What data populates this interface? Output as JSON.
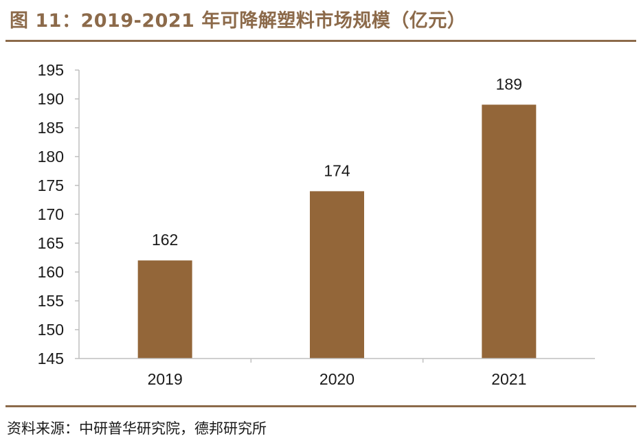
{
  "figure": {
    "title": "图 11：2019-2021 年可降解塑料市场规模（亿元）",
    "source": "资料来源：中研普华研究院，德邦研究所"
  },
  "colors": {
    "accent": "#8c6a4a",
    "bar": "#936639",
    "axis": "#bfbfbf",
    "text": "#1a1a1a"
  },
  "chart_data": {
    "type": "bar",
    "categories": [
      "2019",
      "2020",
      "2021"
    ],
    "values": [
      162,
      174,
      189
    ],
    "data_labels": [
      "162",
      "174",
      "189"
    ],
    "ylim": [
      145,
      195
    ],
    "yticks": [
      145,
      150,
      155,
      160,
      165,
      170,
      175,
      180,
      185,
      190,
      195
    ],
    "ytick_labels": [
      "145",
      "150",
      "155",
      "160",
      "165",
      "170",
      "175",
      "180",
      "185",
      "190",
      "195"
    ],
    "xlabel": "",
    "ylabel": "",
    "grid": false,
    "legend": false
  }
}
